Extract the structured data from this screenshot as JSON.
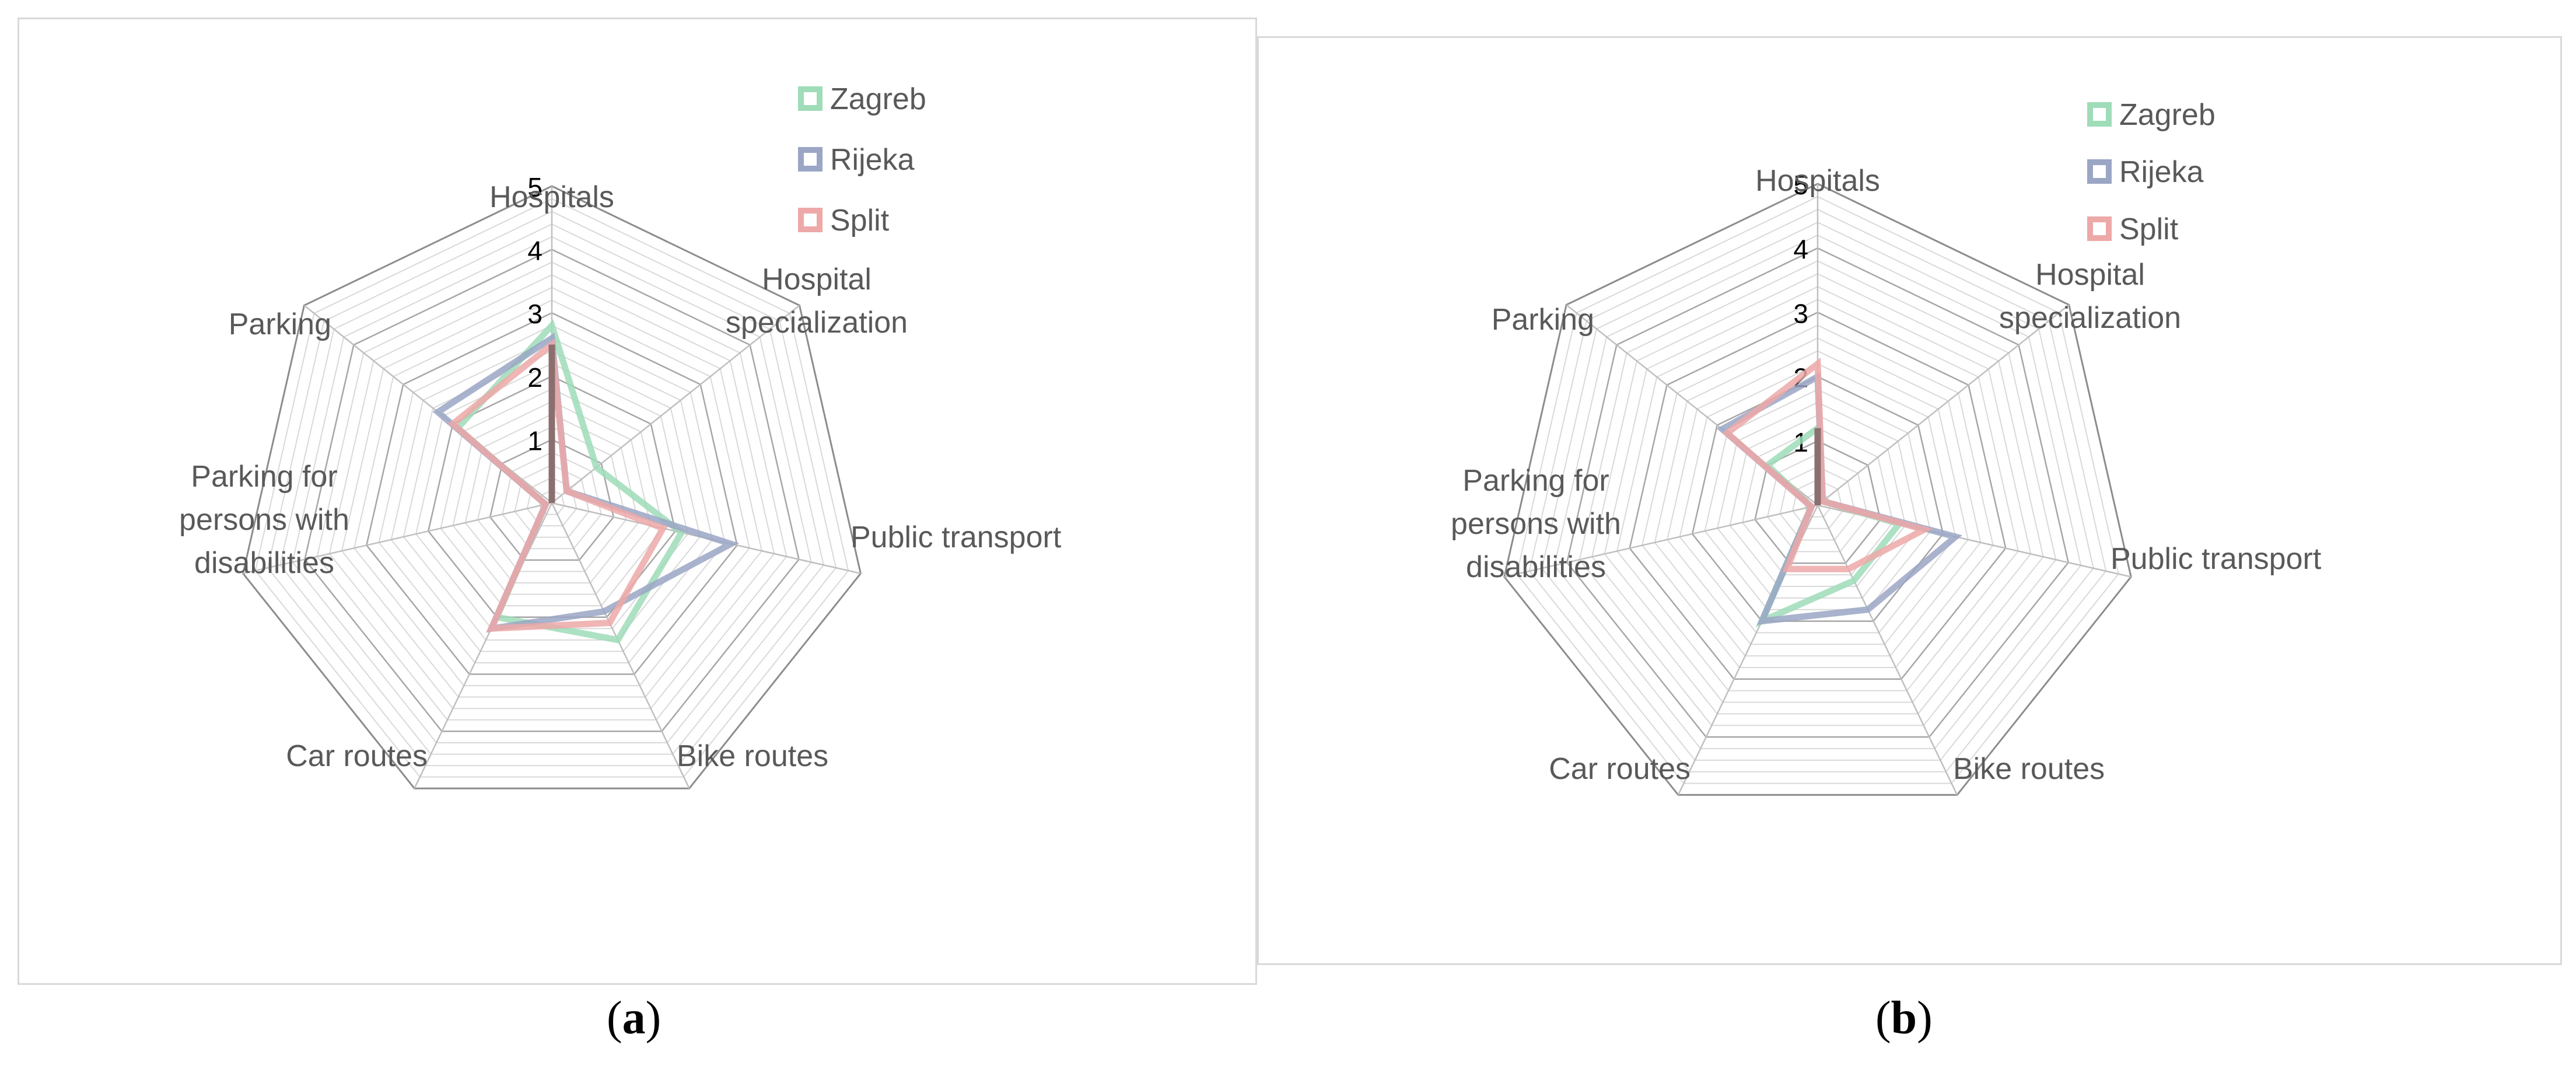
{
  "colors": {
    "Zagreb": "#9fdcb8",
    "Rijeka": "#9aa6c4",
    "Split": "#eda8a8",
    "overlap": "#8b6f6f",
    "grid": "#d9d9d9",
    "spoke": "#bfbfbf",
    "outer": "#8c8c8c"
  },
  "captions": [
    {
      "open": "(",
      "letter": "a",
      "close": ")"
    },
    {
      "open": "(",
      "letter": "b",
      "close": ")"
    }
  ],
  "chart_data": [
    {
      "type": "radar",
      "axes": [
        "Hospitals",
        "Hospital specialization",
        "Public transport",
        "Bike routes",
        "Car routes",
        "Parking for persons with disabilities",
        "Parking"
      ],
      "rlim": [
        0,
        5
      ],
      "ticks": [
        "1",
        "2",
        "3",
        "4",
        "5"
      ],
      "legend_position": "top-right",
      "series": [
        {
          "name": "Zagreb",
          "values": [
            2.8,
            0.9,
            2.1,
            2.4,
            2.0,
            0.1,
            1.9
          ]
        },
        {
          "name": "Rijeka",
          "values": [
            2.6,
            0.3,
            2.9,
            1.9,
            2.2,
            0.1,
            2.3
          ]
        },
        {
          "name": "Split",
          "values": [
            2.5,
            0.3,
            1.8,
            2.1,
            2.2,
            0.1,
            2.0
          ]
        }
      ]
    },
    {
      "type": "radar",
      "axes": [
        "Hospitals",
        "Hospital specialization",
        "Public transport",
        "Bike routes",
        "Car routes",
        "Parking for persons with disabilities",
        "Parking"
      ],
      "rlim": [
        0,
        5
      ],
      "ticks": [
        "1",
        "2",
        "3",
        "4",
        "5"
      ],
      "legend_position": "top-right",
      "series": [
        {
          "name": "Zagreb",
          "values": [
            1.2,
            0.1,
            1.3,
            1.3,
            2.0,
            0.1,
            1.0
          ]
        },
        {
          "name": "Rijeka",
          "values": [
            2.0,
            0.1,
            2.2,
            1.8,
            2.0,
            0.1,
            1.9
          ]
        },
        {
          "name": "Split",
          "values": [
            2.2,
            0.1,
            1.7,
            1.1,
            1.1,
            0.1,
            1.8
          ]
        }
      ]
    }
  ]
}
